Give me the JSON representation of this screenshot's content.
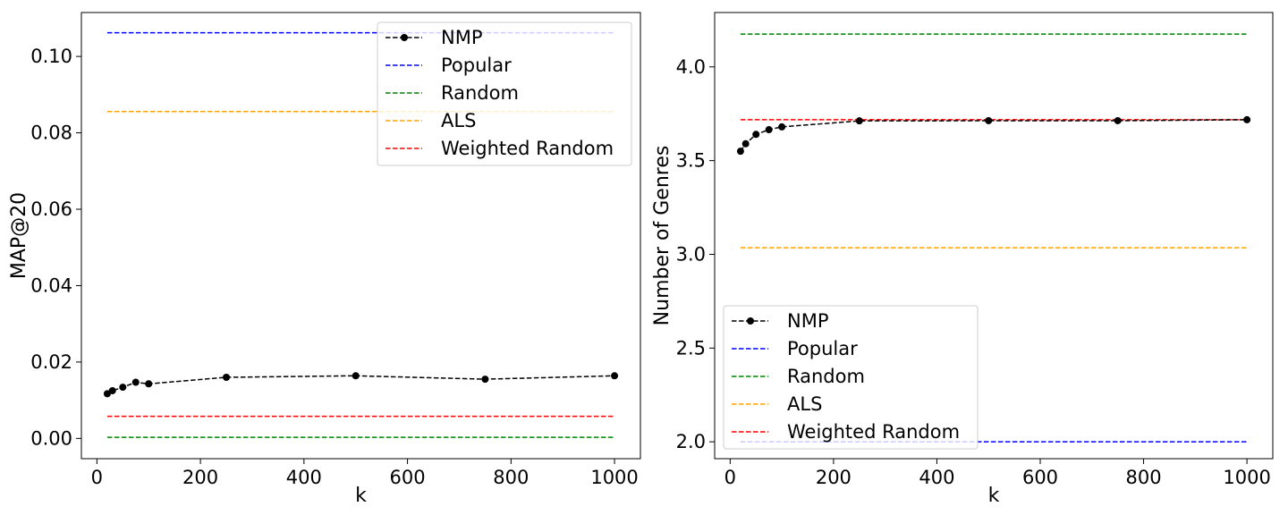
{
  "chart_data": [
    {
      "type": "line",
      "title": "",
      "xlabel": "k",
      "ylabel": "MAP@20",
      "xlim": [
        -30,
        1050
      ],
      "ylim": [
        -0.0053,
        0.1115
      ],
      "xticks": [
        0,
        200,
        400,
        600,
        800,
        1000
      ],
      "xtick_labels": [
        "0",
        "200",
        "400",
        "600",
        "800",
        "1000"
      ],
      "yticks": [
        0.0,
        0.02,
        0.04,
        0.06,
        0.08,
        0.1
      ],
      "ytick_labels": [
        "0.00",
        "0.02",
        "0.04",
        "0.06",
        "0.08",
        "0.10"
      ],
      "grid": false,
      "legend_position": "top-right",
      "series": [
        {
          "name": "NMP",
          "color": "#000000",
          "marker": "circle",
          "x": [
            20,
            30,
            50,
            75,
            100,
            250,
            500,
            750,
            1000
          ],
          "y": [
            0.0117,
            0.0125,
            0.0134,
            0.0147,
            0.0143,
            0.016,
            0.0164,
            0.0155,
            0.0164
          ]
        },
        {
          "name": "Popular",
          "color": "#0000ff",
          "x": [
            20,
            1000
          ],
          "y": [
            0.1062,
            0.1062
          ]
        },
        {
          "name": "Random",
          "color": "#008000",
          "x": [
            20,
            1000
          ],
          "y": [
            0.0003,
            0.0003
          ]
        },
        {
          "name": "ALS",
          "color": "#ffa500",
          "x": [
            20,
            1000
          ],
          "y": [
            0.0856,
            0.0856
          ]
        },
        {
          "name": "Weighted Random",
          "color": "#ff0000",
          "x": [
            20,
            1000
          ],
          "y": [
            0.0058,
            0.0058
          ]
        }
      ]
    },
    {
      "type": "line",
      "title": "",
      "xlabel": "k",
      "ylabel": "Number of Genres",
      "xlim": [
        -30,
        1050
      ],
      "ylim": [
        1.91,
        4.29
      ],
      "xticks": [
        0,
        200,
        400,
        600,
        800,
        1000
      ],
      "xtick_labels": [
        "0",
        "200",
        "400",
        "600",
        "800",
        "1000"
      ],
      "yticks": [
        2.0,
        2.5,
        3.0,
        3.5,
        4.0
      ],
      "ytick_labels": [
        "2.0",
        "2.5",
        "3.0",
        "3.5",
        "4.0"
      ],
      "grid": false,
      "legend_position": "lower-left",
      "series": [
        {
          "name": "NMP",
          "color": "#000000",
          "marker": "circle",
          "x": [
            20,
            30,
            50,
            75,
            100,
            250,
            500,
            750,
            1000
          ],
          "y": [
            3.55,
            3.59,
            3.64,
            3.665,
            3.68,
            3.712,
            3.713,
            3.713,
            3.718
          ]
        },
        {
          "name": "Popular",
          "color": "#0000ff",
          "x": [
            20,
            1000
          ],
          "y": [
            2.0,
            2.0
          ]
        },
        {
          "name": "Random",
          "color": "#008000",
          "x": [
            20,
            1000
          ],
          "y": [
            4.175,
            4.175
          ]
        },
        {
          "name": "ALS",
          "color": "#ffa500",
          "x": [
            20,
            1000
          ],
          "y": [
            3.035,
            3.035
          ]
        },
        {
          "name": "Weighted Random",
          "color": "#ff0000",
          "x": [
            20,
            1000
          ],
          "y": [
            3.718,
            3.718
          ]
        }
      ]
    }
  ]
}
